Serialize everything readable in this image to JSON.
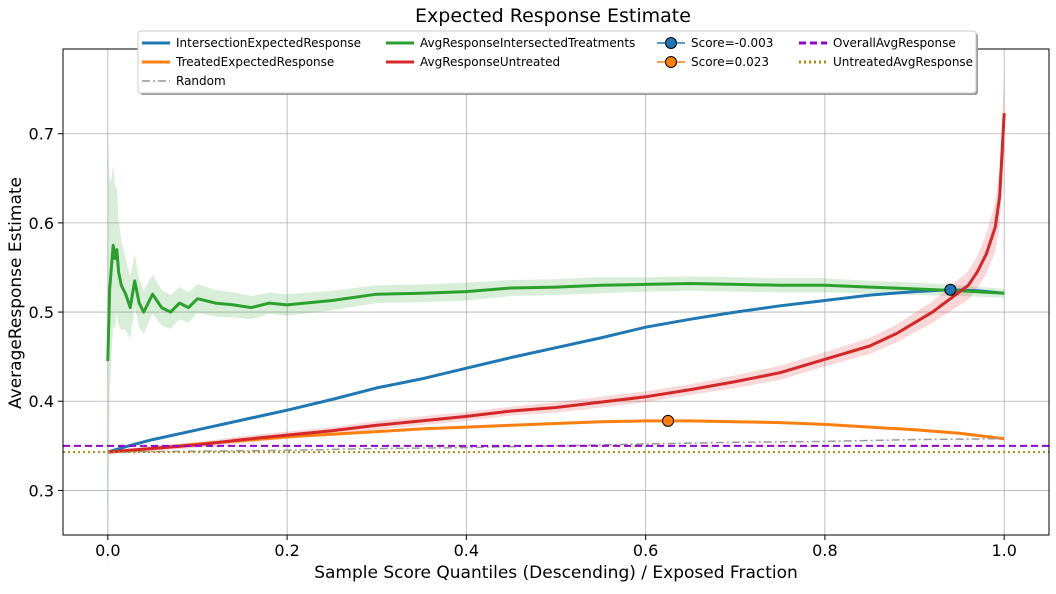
{
  "chart_data": {
    "type": "line",
    "title": "Expected Response Estimate",
    "xlabel": "Sample Score Quantiles (Descending) / Exposed Fraction",
    "ylabel": "AverageResponse Estimate",
    "xlim": [
      -0.05,
      1.05
    ],
    "ylim": [
      0.25,
      0.795
    ],
    "xticks": [
      0.0,
      0.2,
      0.4,
      0.6,
      0.8,
      1.0
    ],
    "xtick_labels": [
      "0.0",
      "0.2",
      "0.4",
      "0.6",
      "0.8",
      "1.0"
    ],
    "yticks": [
      0.3,
      0.4,
      0.5,
      0.6,
      0.7
    ],
    "ytick_labels": [
      "0.3",
      "0.4",
      "0.5",
      "0.6",
      "0.7"
    ],
    "grid": true,
    "legend_position": "top-center",
    "series": [
      {
        "name": "IntersectionExpectedResponse",
        "color": "#1f77b4",
        "style": "solid",
        "x": [
          0.0,
          0.02,
          0.05,
          0.1,
          0.15,
          0.2,
          0.25,
          0.3,
          0.35,
          0.4,
          0.45,
          0.5,
          0.55,
          0.6,
          0.65,
          0.7,
          0.75,
          0.8,
          0.85,
          0.9,
          0.94,
          0.97,
          1.0
        ],
        "y": [
          0.343,
          0.349,
          0.357,
          0.368,
          0.379,
          0.39,
          0.402,
          0.415,
          0.425,
          0.437,
          0.449,
          0.46,
          0.471,
          0.483,
          0.492,
          0.5,
          0.507,
          0.513,
          0.519,
          0.523,
          0.525,
          0.524,
          0.521
        ]
      },
      {
        "name": "TreatedExpectedResponse",
        "color": "#ff7f0e",
        "style": "solid",
        "x": [
          0.0,
          0.05,
          0.1,
          0.15,
          0.2,
          0.25,
          0.3,
          0.35,
          0.4,
          0.45,
          0.5,
          0.55,
          0.6,
          0.625,
          0.65,
          0.7,
          0.75,
          0.8,
          0.85,
          0.9,
          0.95,
          1.0
        ],
        "y": [
          0.343,
          0.347,
          0.352,
          0.356,
          0.36,
          0.363,
          0.366,
          0.369,
          0.371,
          0.373,
          0.375,
          0.377,
          0.378,
          0.378,
          0.378,
          0.377,
          0.376,
          0.374,
          0.371,
          0.368,
          0.364,
          0.358
        ]
      },
      {
        "name": "Random",
        "color": "#999999",
        "style": "dashdot",
        "x": [
          0.0,
          0.1,
          0.2,
          0.3,
          0.4,
          0.5,
          0.6,
          0.7,
          0.8,
          0.9,
          1.0
        ],
        "y": [
          0.343,
          0.344,
          0.345,
          0.347,
          0.348,
          0.35,
          0.352,
          0.354,
          0.355,
          0.357,
          0.358
        ]
      },
      {
        "name": "AvgResponseIntersectedTreatments",
        "color": "#2ca02c",
        "style": "solid",
        "x": [
          0.0,
          0.002,
          0.004,
          0.006,
          0.008,
          0.01,
          0.012,
          0.015,
          0.02,
          0.025,
          0.03,
          0.035,
          0.04,
          0.05,
          0.06,
          0.07,
          0.08,
          0.09,
          0.1,
          0.12,
          0.14,
          0.16,
          0.18,
          0.2,
          0.25,
          0.3,
          0.35,
          0.4,
          0.45,
          0.5,
          0.55,
          0.6,
          0.65,
          0.7,
          0.75,
          0.8,
          0.85,
          0.9,
          0.95,
          1.0
        ],
        "y": [
          0.445,
          0.525,
          0.55,
          0.575,
          0.56,
          0.57,
          0.545,
          0.53,
          0.52,
          0.505,
          0.535,
          0.51,
          0.5,
          0.52,
          0.505,
          0.5,
          0.51,
          0.505,
          0.515,
          0.51,
          0.508,
          0.505,
          0.51,
          0.508,
          0.513,
          0.52,
          0.521,
          0.523,
          0.527,
          0.528,
          0.53,
          0.531,
          0.532,
          0.531,
          0.53,
          0.53,
          0.528,
          0.526,
          0.524,
          0.521
        ],
        "band": [
          0.25,
          0.12,
          0.1,
          0.09,
          0.08,
          0.07,
          0.06,
          0.05,
          0.04,
          0.035,
          0.03,
          0.027,
          0.024,
          0.022,
          0.02,
          0.019,
          0.018,
          0.017,
          0.016,
          0.015,
          0.014,
          0.013,
          0.012,
          0.012,
          0.011,
          0.01,
          0.01,
          0.01,
          0.009,
          0.009,
          0.009,
          0.008,
          0.008,
          0.008,
          0.008,
          0.008,
          0.007,
          0.007,
          0.006,
          0.005
        ]
      },
      {
        "name": "AvgResponseUntreated",
        "color": "#d62728",
        "style": "solid",
        "x": [
          0.0,
          0.05,
          0.1,
          0.15,
          0.2,
          0.25,
          0.3,
          0.35,
          0.4,
          0.45,
          0.5,
          0.55,
          0.6,
          0.65,
          0.7,
          0.75,
          0.8,
          0.85,
          0.88,
          0.9,
          0.92,
          0.94,
          0.96,
          0.97,
          0.98,
          0.99,
          0.995,
          1.0
        ],
        "y": [
          0.343,
          0.347,
          0.351,
          0.357,
          0.362,
          0.367,
          0.373,
          0.378,
          0.383,
          0.389,
          0.393,
          0.399,
          0.405,
          0.413,
          0.422,
          0.432,
          0.447,
          0.462,
          0.476,
          0.488,
          0.5,
          0.515,
          0.53,
          0.545,
          0.565,
          0.595,
          0.63,
          0.723
        ],
        "band": [
          0.002,
          0.003,
          0.003,
          0.004,
          0.004,
          0.004,
          0.005,
          0.005,
          0.005,
          0.005,
          0.006,
          0.006,
          0.006,
          0.006,
          0.007,
          0.008,
          0.008,
          0.009,
          0.01,
          0.011,
          0.012,
          0.014,
          0.016,
          0.018,
          0.022,
          0.028,
          0.032,
          0.04
        ]
      },
      {
        "name": "OverallAvgResponse",
        "color": "#9400d3",
        "style": "dashed",
        "hline": 0.35
      },
      {
        "name": "UntreatedAvgResponse",
        "color": "#b8860b",
        "style": "dotted",
        "hline": 0.343
      }
    ],
    "points": [
      {
        "label": "Score=-0.003",
        "x": 0.94,
        "y": 0.525,
        "color": "#1f77b4"
      },
      {
        "label": "Score=0.023",
        "x": 0.625,
        "y": 0.378,
        "color": "#ff7f0e"
      }
    ],
    "legend": [
      {
        "label": "IntersectionExpectedResponse",
        "color": "#1f77b4",
        "style": "solid"
      },
      {
        "label": "TreatedExpectedResponse",
        "color": "#ff7f0e",
        "style": "solid"
      },
      {
        "label": "Random",
        "color": "#999999",
        "style": "dashdot"
      },
      {
        "label": "AvgResponseIntersectedTreatments",
        "color": "#2ca02c",
        "style": "solid"
      },
      {
        "label": "AvgResponseUntreated",
        "color": "#d62728",
        "style": "solid"
      },
      {
        "label": "Score=-0.003",
        "color": "#1f77b4",
        "style": "marker"
      },
      {
        "label": "Score=0.023",
        "color": "#ff7f0e",
        "style": "marker"
      },
      {
        "label": "OverallAvgResponse",
        "color": "#9400d3",
        "style": "dashed"
      },
      {
        "label": "UntreatedAvgResponse",
        "color": "#b8860b",
        "style": "dotted"
      }
    ]
  }
}
